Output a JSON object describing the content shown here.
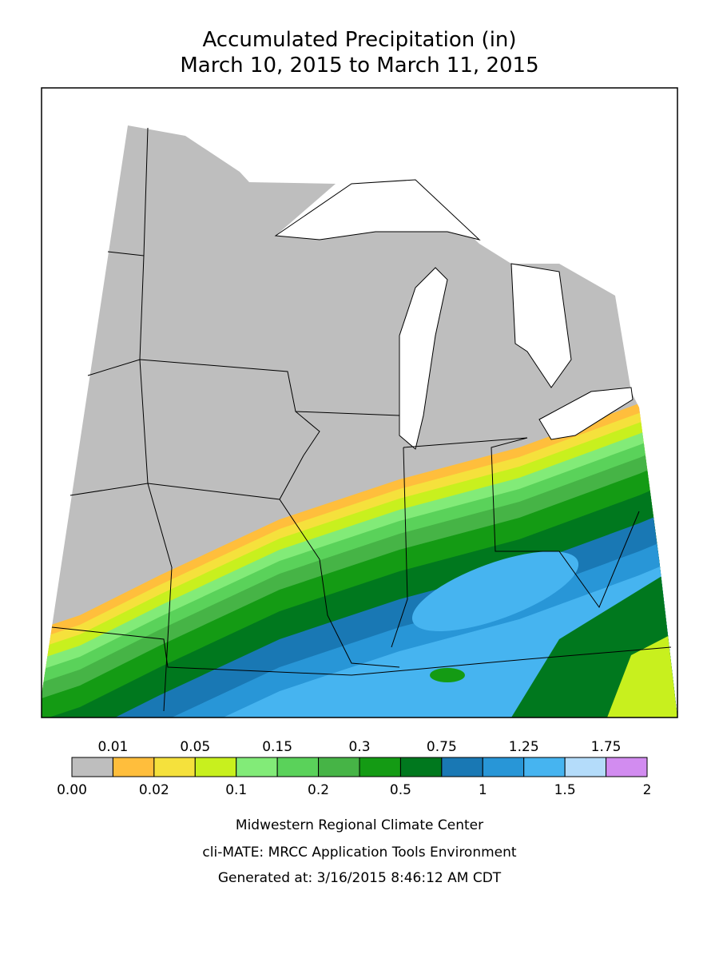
{
  "header": {
    "title": "Accumulated Precipitation (in)",
    "subtitle": "March 10, 2015 to March 11, 2015"
  },
  "legend": {
    "labels": [
      "0.00",
      "0.01",
      "0.02",
      "0.05",
      "0.1",
      "0.15",
      "0.2",
      "0.3",
      "0.5",
      "0.75",
      "1",
      "1.25",
      "1.5",
      "1.75",
      "2"
    ],
    "colors": [
      "#bebebe",
      "#ffbe3c",
      "#f5e13c",
      "#c8f01e",
      "#82eb78",
      "#5ad25a",
      "#46b446",
      "#149b14",
      "#00781e",
      "#1978b4",
      "#2896d7",
      "#46b4f0",
      "#b4dcfa",
      "#d28cf0"
    ]
  },
  "footer": {
    "lines": [
      "Midwestern Regional Climate Center",
      "cli-MATE: MRCC Application Tools Environment",
      "Generated at: 3/16/2015 8:46:12 AM CDT"
    ]
  }
}
